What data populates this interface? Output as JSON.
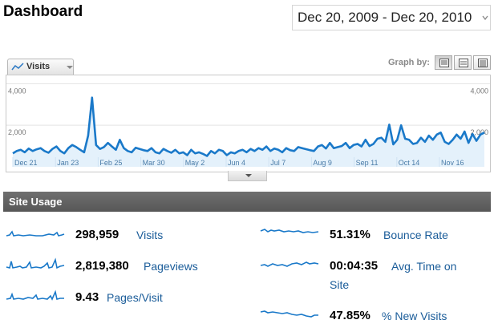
{
  "header": {
    "title": "Dashboard",
    "date_range": "Dec 20, 2009 - Dec 20, 2010"
  },
  "graph": {
    "metric_label": "Visits",
    "graph_by_label": "Graph by:",
    "view_buttons": [
      "day-view-icon",
      "week-view-icon",
      "month-view-icon"
    ],
    "active_view": 0,
    "line_color": "#1a79c9",
    "fill_color": "#e4f1fb"
  },
  "chart_data": {
    "type": "area",
    "ylabels_left": [
      "4,000",
      "2,000"
    ],
    "ylabels_right": [
      "4,000",
      "2,000"
    ],
    "yticks": [
      4000,
      2000
    ],
    "ylim": [
      0,
      4400
    ],
    "xlabels": [
      "Dec 21",
      "Jan 23",
      "Feb 25",
      "Mar 30",
      "May 2",
      "Jun 4",
      "Jul 7",
      "Aug 9",
      "Sep 11",
      "Oct 14",
      "Nov 16"
    ],
    "series": [
      {
        "values": [
          650,
          760,
          820,
          700,
          880,
          760,
          840,
          900,
          760,
          680,
          860,
          980,
          760,
          650,
          900,
          1050,
          950,
          820,
          700,
          1500,
          3330,
          1050,
          860,
          950,
          1150,
          980,
          820,
          1300,
          900,
          760,
          700,
          920,
          860,
          800,
          760,
          900,
          700,
          650,
          860,
          760,
          680,
          820,
          650,
          700,
          560,
          820,
          650,
          700,
          620,
          520,
          760,
          650,
          820,
          760,
          560,
          700,
          650,
          760,
          820,
          700,
          860,
          760,
          900,
          820,
          980,
          760,
          880,
          820,
          700,
          900,
          800,
          760,
          950,
          900,
          850,
          800,
          760,
          980,
          1050,
          880,
          1150,
          900,
          950,
          1000,
          1150,
          900,
          1050,
          1100,
          980,
          1300,
          1000,
          1100,
          1350,
          1400,
          1200,
          2030,
          1080,
          1300,
          2000,
          1350,
          1300,
          1100,
          1150,
          1400,
          1200,
          1500,
          1300,
          1550,
          1650,
          1200,
          1100,
          1300,
          1550,
          1350,
          1700,
          1150,
          1580,
          1250,
          1550,
          1650
        ]
      }
    ]
  },
  "site_usage": {
    "title": "Site Usage",
    "stats": [
      {
        "value": "298,959",
        "label": "Visits"
      },
      {
        "value": "2,819,380",
        "label": "Pageviews"
      },
      {
        "value": "9.43",
        "label": "Pages/Visit"
      },
      {
        "value": "51.31%",
        "label": "Bounce Rate"
      },
      {
        "value": "00:04:35",
        "label": "Avg. Time on",
        "label_line2": "Site"
      },
      {
        "value": "47.85%",
        "label": "% New Visits"
      }
    ]
  }
}
